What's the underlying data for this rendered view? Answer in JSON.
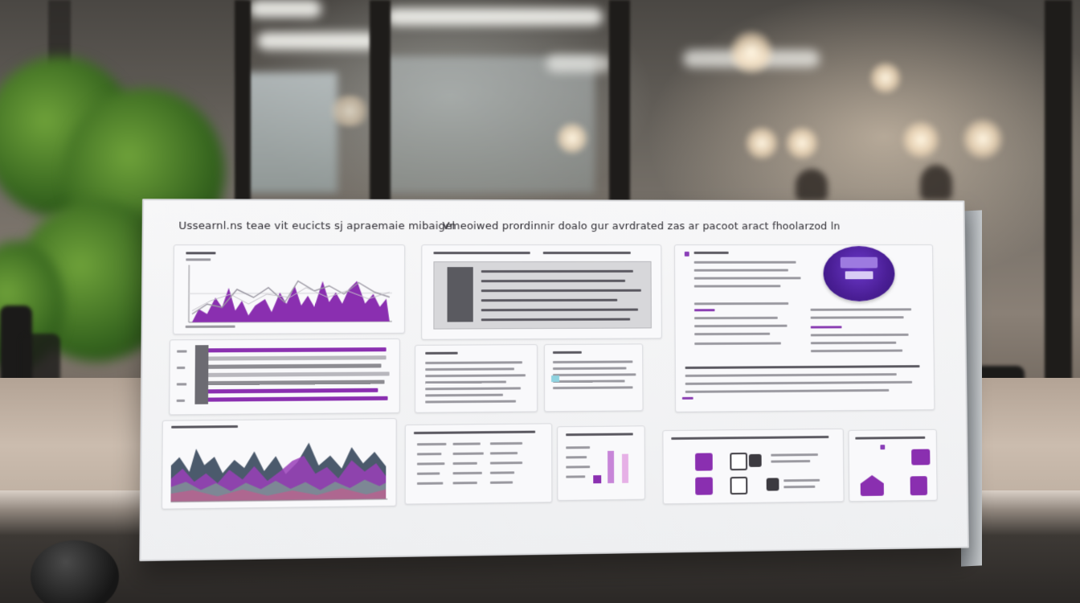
{
  "scene": {
    "board": {
      "left_heading": "Ussearnl.ns teae vit eucicts sj apraemaie mibaigel",
      "right_heading": "Vmeoiwed prordinnir doalo gur avrdrated zas ar pacoot aract fhoolarzod ln"
    },
    "palette": {
      "purple": "#8a2fb0",
      "violet": "#4a1e95",
      "gray": "#8d8c92",
      "slate": "#4b5a6c",
      "board": "#f4f4f6"
    },
    "icons": [
      "area-chart-icon",
      "bar-chart-icon",
      "purple-disc-badge",
      "document-icon",
      "tile-icons"
    ]
  }
}
